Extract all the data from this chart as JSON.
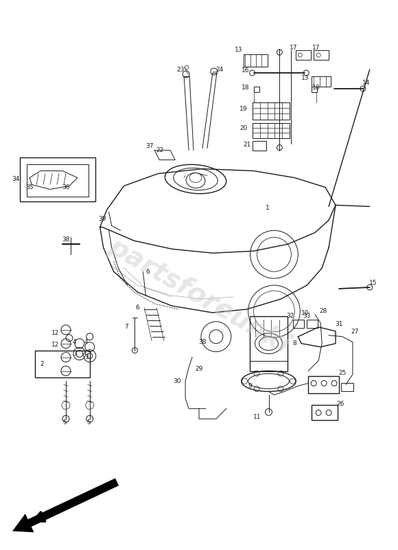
{
  "fig_width": 5.8,
  "fig_height": 8.0,
  "dpi": 100,
  "bg": "#ffffff",
  "lc": "#1a1a1a",
  "watermark": "partsforeunki"
}
